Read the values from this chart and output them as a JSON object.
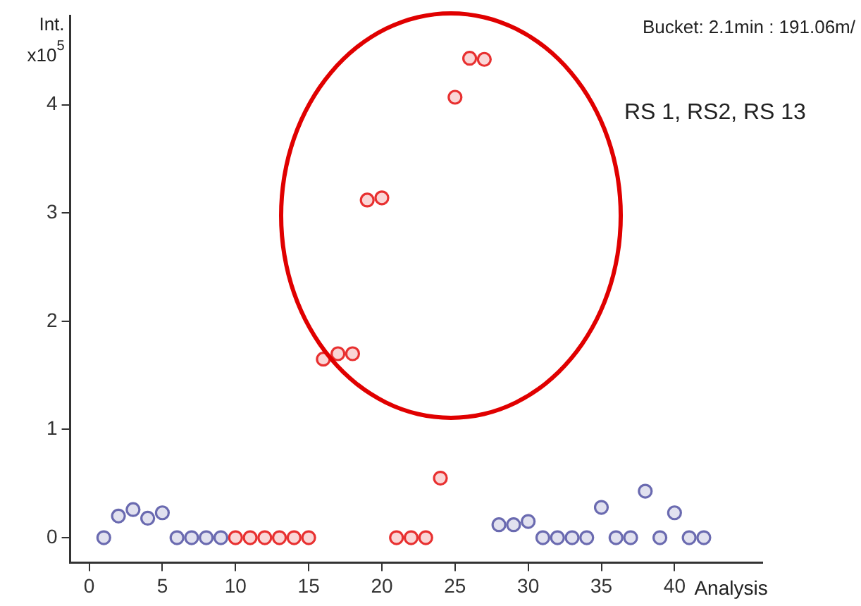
{
  "chart_data": {
    "type": "scatter",
    "ylabel": "Int. x10$^{5}$",
    "xlabel": "Analysis",
    "annotations": [
      "Bucket: 2.1min : 191.06m/",
      "RS 1, RS2, RS 13"
    ],
    "series": [
      {
        "color": "#6a6ab0",
        "x": [
          1,
          2,
          3,
          4,
          5,
          6,
          7,
          8,
          9,
          28,
          29,
          30,
          31,
          32,
          33,
          34,
          35,
          36,
          37,
          38,
          39,
          40,
          41,
          42
        ],
        "values": [
          0,
          0.2,
          0.26,
          0.18,
          0.23,
          0,
          0,
          0,
          0,
          0.12,
          0.12,
          0.15,
          0,
          0,
          0,
          0,
          0.28,
          0,
          0,
          0.43,
          0,
          0.23,
          0,
          0
        ]
      },
      {
        "color": "#e83030",
        "x": [
          10,
          11,
          12,
          13,
          14,
          15,
          16,
          17,
          18,
          19,
          20,
          21,
          22,
          23,
          24,
          25,
          26,
          27
        ],
        "values": [
          0,
          0,
          0,
          0,
          0,
          0,
          1.65,
          1.7,
          1.7,
          3.12,
          3.14,
          0,
          0,
          0,
          0.55,
          4.07,
          4.43,
          4.42
        ]
      }
    ],
    "xlim": [
      -1.3,
      46
    ],
    "ylim": [
      -0.23,
      4.82
    ],
    "xticks": [
      0,
      5,
      10,
      15,
      20,
      25,
      30,
      35,
      40
    ],
    "yticks": [
      0,
      1,
      2,
      3,
      4
    ],
    "grid": false,
    "legend": false,
    "marker": "circle"
  }
}
